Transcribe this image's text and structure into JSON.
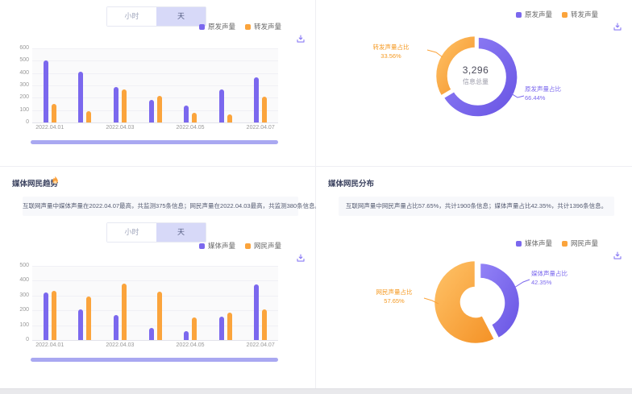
{
  "colors": {
    "purple": "#7B68EE",
    "orange": "#FBA43C",
    "scrollbar": "#A9A8F1",
    "toggle_selected_bg": "#D7D9F8"
  },
  "panels": {
    "voice_trend": {
      "toggle": {
        "options": [
          "小时",
          "天"
        ],
        "selected": "天"
      },
      "legend": [
        {
          "label": "原发声量",
          "color": "#7B68EE"
        },
        {
          "label": "转发声量",
          "color": "#FBA43C"
        }
      ]
    },
    "info_total": {
      "legend": [
        {
          "label": "原发声量",
          "color": "#7B68EE"
        },
        {
          "label": "转发声量",
          "color": "#FBA43C"
        }
      ],
      "center": {
        "value": "3,296",
        "label": "信息总量"
      },
      "callouts": {
        "orange": {
          "name": "转发声量占比",
          "pct": "33.56%"
        },
        "purple": {
          "name": "原发声量占比",
          "pct": "66.44%"
        }
      }
    },
    "media_trend": {
      "title": "媒体网民趋势",
      "description": "互联网声量中媒体声量在2022.04.07最高，共监测375条信息；网民声量在2022.04.03最高，共监测380条信息。",
      "toggle": {
        "options": [
          "小时",
          "天"
        ],
        "selected": "天"
      },
      "legend": [
        {
          "label": "媒体声量",
          "color": "#7B68EE"
        },
        {
          "label": "网民声量",
          "color": "#FBA43C"
        }
      ]
    },
    "media_dist": {
      "title": "媒体网民分布",
      "description": "互联网声量中网民声量占比57.65%，共计1900条信息；媒体声量占比42.35%，共计1396条信息。",
      "legend": [
        {
          "label": "媒体声量",
          "color": "#7B68EE"
        },
        {
          "label": "网民声量",
          "color": "#FBA43C"
        }
      ],
      "callouts": {
        "purple": {
          "name": "媒体声量占比",
          "pct": "42.35%"
        },
        "orange": {
          "name": "网民声量占比",
          "pct": "57.65%"
        }
      }
    }
  },
  "chart_data": [
    {
      "type": "bar",
      "categories": [
        "2022.04.01",
        "2022.04.02",
        "2022.04.03",
        "2022.04.04",
        "2022.04.05",
        "2022.04.06",
        "2022.04.07"
      ],
      "series": [
        {
          "name": "原发声量",
          "color": "#7B68EE",
          "values": [
            505,
            410,
            285,
            185,
            135,
            270,
            365
          ]
        },
        {
          "name": "转发声量",
          "color": "#FBA43C",
          "values": [
            150,
            90,
            265,
            215,
            80,
            65,
            210
          ]
        }
      ],
      "ylim": [
        0,
        600
      ],
      "ytick_step": 100,
      "grid": true,
      "xtick_labels_shown": [
        "2022.04.01",
        "2022.04.03",
        "2022.04.05",
        "2022.04.07"
      ],
      "legend_position": "top-right"
    },
    {
      "type": "pie",
      "center_value": "3,296",
      "center_label": "信息总量",
      "slices": [
        {
          "name": "原发声量占比",
          "pct": 66.44,
          "color": "#7B68EE"
        },
        {
          "name": "转发声量占比",
          "pct": 33.56,
          "color": "#FBA43C"
        }
      ],
      "legend_position": "top-right"
    },
    {
      "type": "bar",
      "title": "媒体网民趋势",
      "categories": [
        "2022.04.01",
        "2022.04.02",
        "2022.04.03",
        "2022.04.04",
        "2022.04.05",
        "2022.04.06",
        "2022.04.07"
      ],
      "series": [
        {
          "name": "媒体声量",
          "color": "#7B68EE",
          "values": [
            320,
            205,
            170,
            80,
            60,
            155,
            375
          ]
        },
        {
          "name": "网民声量",
          "color": "#FBA43C",
          "values": [
            330,
            295,
            380,
            325,
            150,
            185,
            205
          ]
        }
      ],
      "ylim": [
        0,
        500
      ],
      "ytick_step": 100,
      "grid": true,
      "xtick_labels_shown": [
        "2022.04.01",
        "2022.04.03",
        "2022.04.05",
        "2022.04.07"
      ],
      "legend_position": "top-right"
    },
    {
      "type": "pie",
      "title": "媒体网民分布",
      "slices": [
        {
          "name": "媒体声量占比",
          "pct": 42.35,
          "color": "#7B68EE"
        },
        {
          "name": "网民声量占比",
          "pct": 57.65,
          "color": "#FBA43C"
        }
      ],
      "legend_position": "top-right"
    }
  ]
}
